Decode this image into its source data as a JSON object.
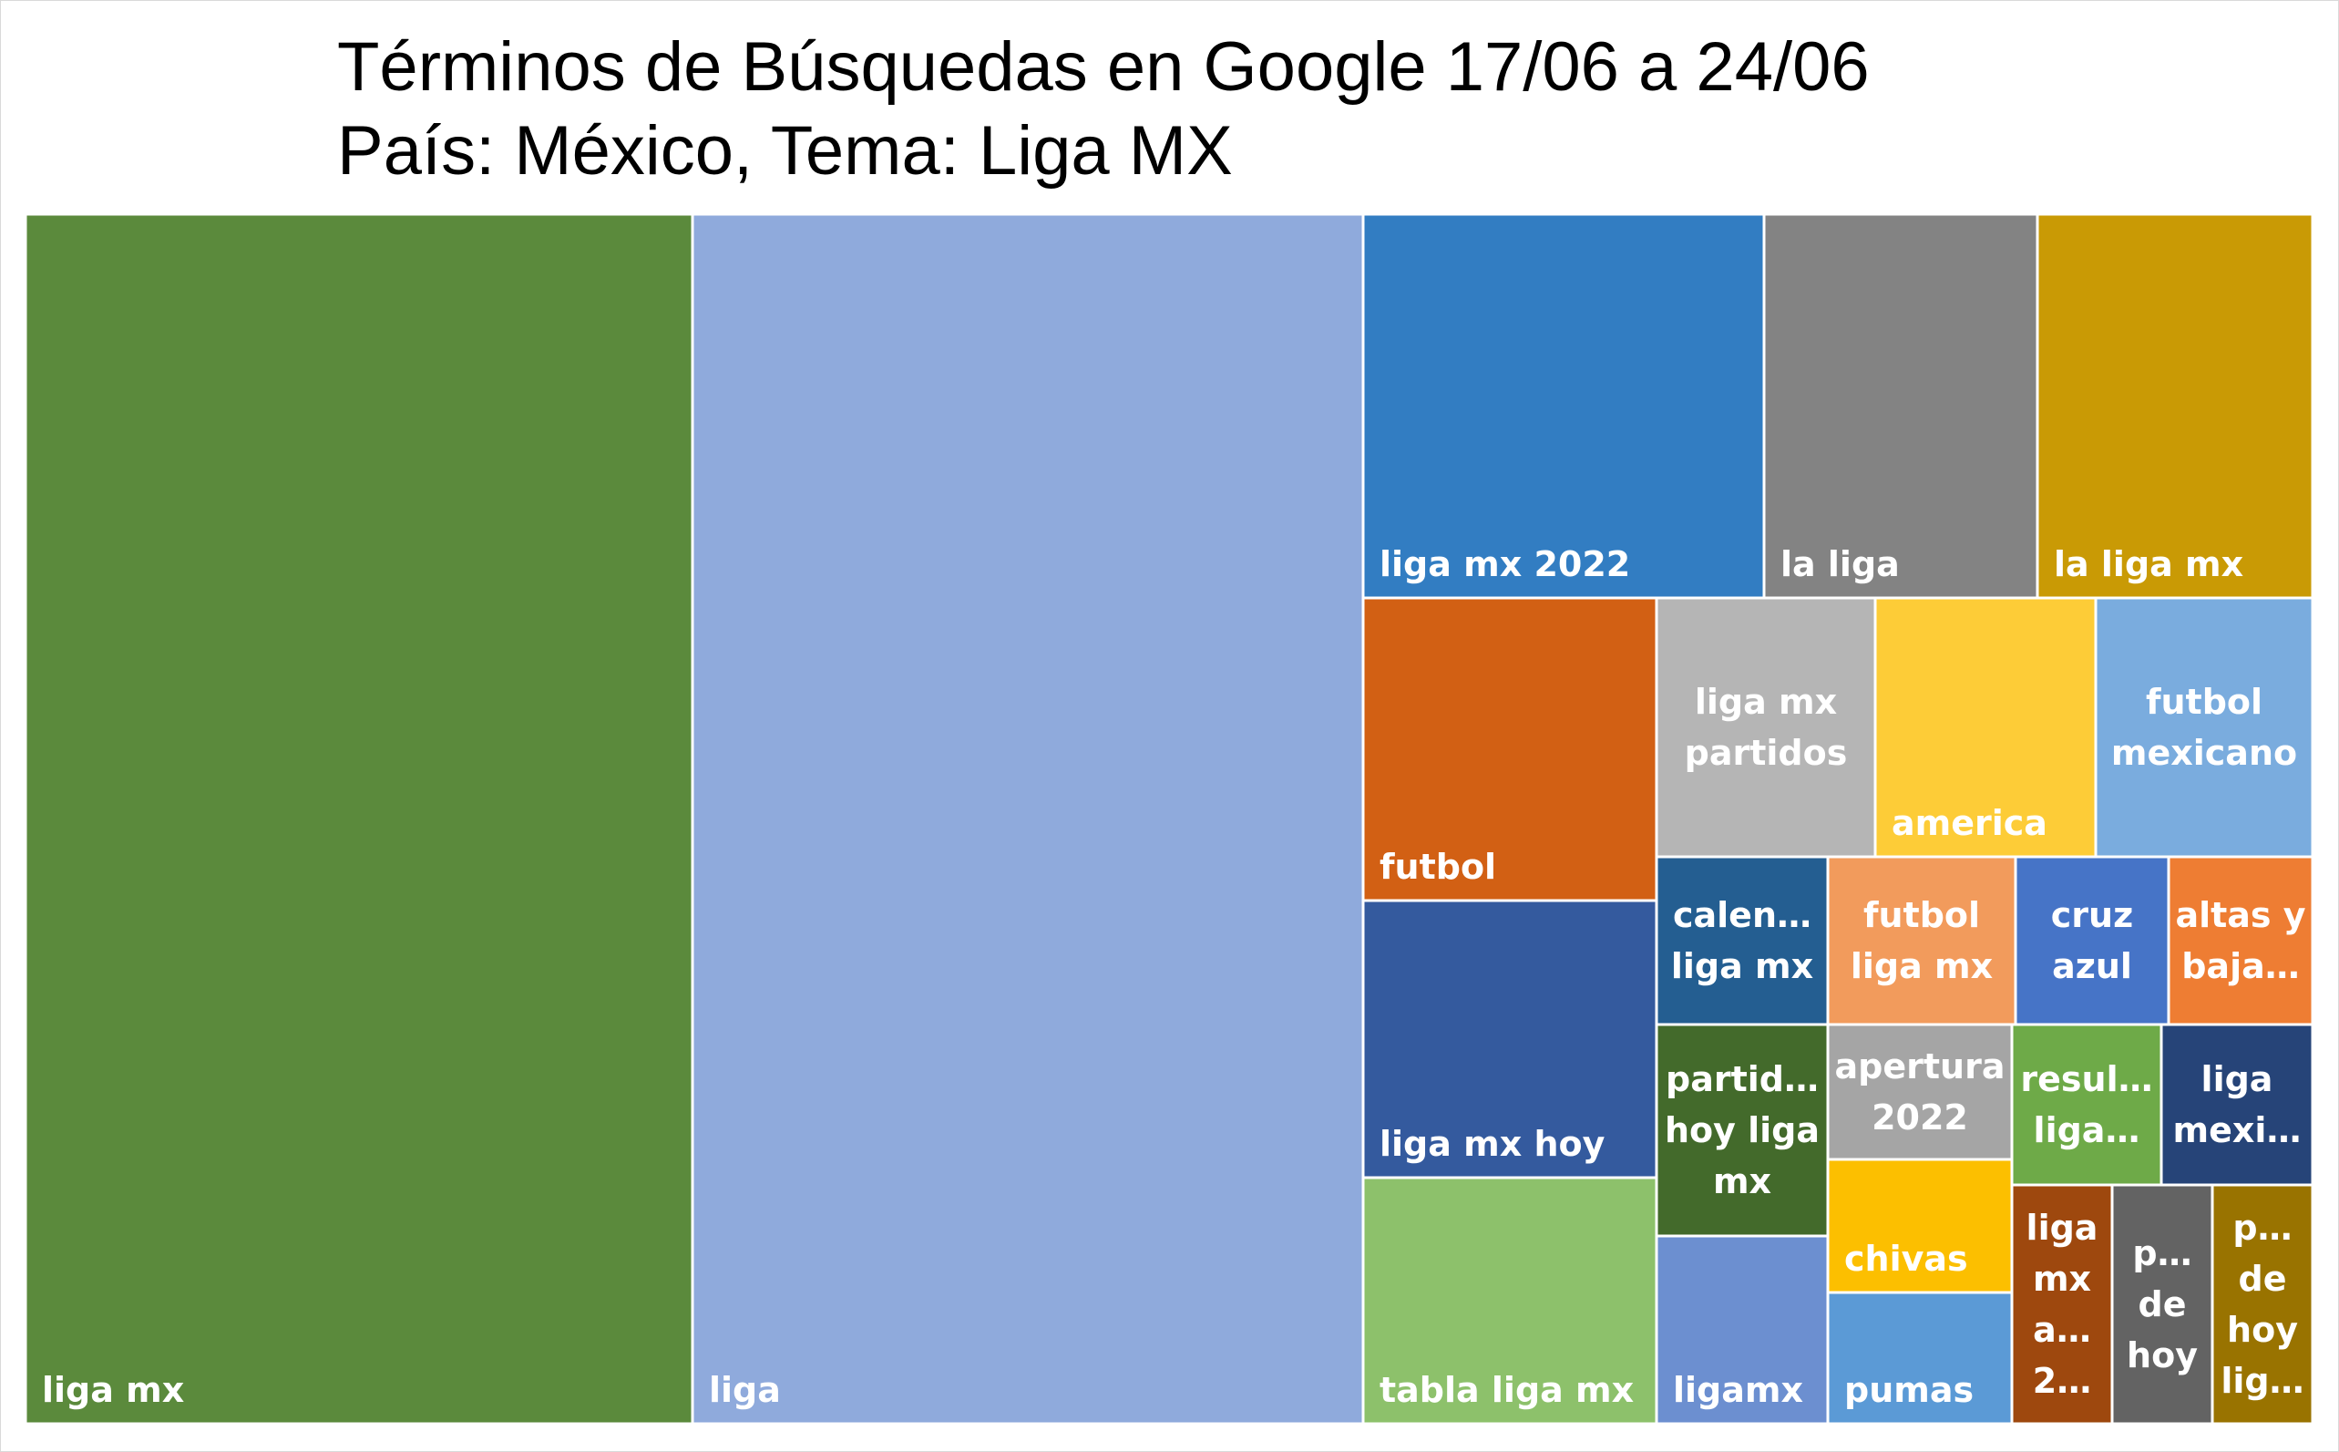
{
  "chart_data": {
    "type": "treemap",
    "title": "Términos de Búsquedas en Google 17/06 a 24/06",
    "subtitle": "País: México, Tema: Liga MX",
    "items": [
      {
        "name": "liga mx",
        "label_lines": [
          "liga mx"
        ],
        "color": "#5B8A3C",
        "value": 100
      },
      {
        "name": "liga",
        "label_lines": [
          "liga"
        ],
        "color": "#8FAADC",
        "value": 100
      },
      {
        "name": "liga mx 2022",
        "label_lines": [
          "liga mx 2022"
        ],
        "color": "#327DC2",
        "value": 19
      },
      {
        "name": "la liga",
        "label_lines": [
          "la liga"
        ],
        "color": "#838383",
        "value": 13
      },
      {
        "name": "la liga mx",
        "label_lines": [
          "la liga mx"
        ],
        "color": "#C99A05",
        "value": 13
      },
      {
        "name": "futbol",
        "label_lines": [
          "futbol"
        ],
        "color": "#D26014",
        "value": 9
      },
      {
        "name": "liga mx hoy",
        "label_lines": [
          "liga mx hoy"
        ],
        "color": "#345A9E",
        "value": 9
      },
      {
        "name": "tabla liga mx",
        "label_lines": [
          "tabla liga mx"
        ],
        "color": "#8DC16B",
        "value": 9
      },
      {
        "name": "liga mx partidos",
        "label_lines": [
          "liga mx",
          "partidos"
        ],
        "color": "#B5B5B5",
        "value": 6
      },
      {
        "name": "america",
        "label_lines": [
          "america"
        ],
        "color": "#FDCC37",
        "value": 6
      },
      {
        "name": "futbol mexicano",
        "label_lines": [
          "futbol",
          "mexicano"
        ],
        "color": "#7AACDE",
        "value": 6
      },
      {
        "name": "calendario liga mx",
        "label_lines": [
          "calen…",
          "liga mx"
        ],
        "color": "#245E91",
        "value": 4
      },
      {
        "name": "partidos hoy liga mx",
        "label_lines": [
          "partid…",
          "hoy liga",
          "mx"
        ],
        "color": "#436A2B",
        "value": 4
      },
      {
        "name": "ligamx",
        "label_lines": [
          "ligamx"
        ],
        "color": "#6C8FD0",
        "value": 4
      },
      {
        "name": "futbol liga mx",
        "label_lines": [
          "futbol",
          "liga mx"
        ],
        "color": "#F29B5C",
        "value": 3
      },
      {
        "name": "cruz azul",
        "label_lines": [
          "cruz",
          "azul"
        ],
        "color": "#4674C7",
        "value": 2
      },
      {
        "name": "altas y bajas",
        "label_lines": [
          "altas y",
          "baja…"
        ],
        "color": "#EE7D33",
        "value": 2
      },
      {
        "name": "apertura 2022",
        "label_lines": [
          "apertura",
          "2022"
        ],
        "color": "#A5A5A5",
        "value": 2.5
      },
      {
        "name": "resultados liga",
        "label_lines": [
          "resul…",
          "liga…"
        ],
        "color": "#6EAA48",
        "value": 2
      },
      {
        "name": "liga mexicana",
        "label_lines": [
          "liga",
          "mexi…"
        ],
        "color": "#264478",
        "value": 2
      },
      {
        "name": "chivas",
        "label_lines": [
          "chivas"
        ],
        "color": "#FCBF00",
        "value": 2.5
      },
      {
        "name": "pumas",
        "label_lines": [
          "pumas"
        ],
        "color": "#5B9AD6",
        "value": 2
      },
      {
        "name": "liga mx apertura 2022",
        "label_lines": [
          "liga",
          "mx",
          "a…",
          "2…"
        ],
        "color": "#9E480E",
        "value": 1.5
      },
      {
        "name": "partidos de hoy",
        "label_lines": [
          "p…",
          "de",
          "hoy"
        ],
        "color": "#636363",
        "value": 1.5
      },
      {
        "name": "partidos de hoy liga",
        "label_lines": [
          "p…",
          "de",
          "hoy",
          "lig…"
        ],
        "color": "#997300",
        "value": 1.5
      }
    ]
  }
}
